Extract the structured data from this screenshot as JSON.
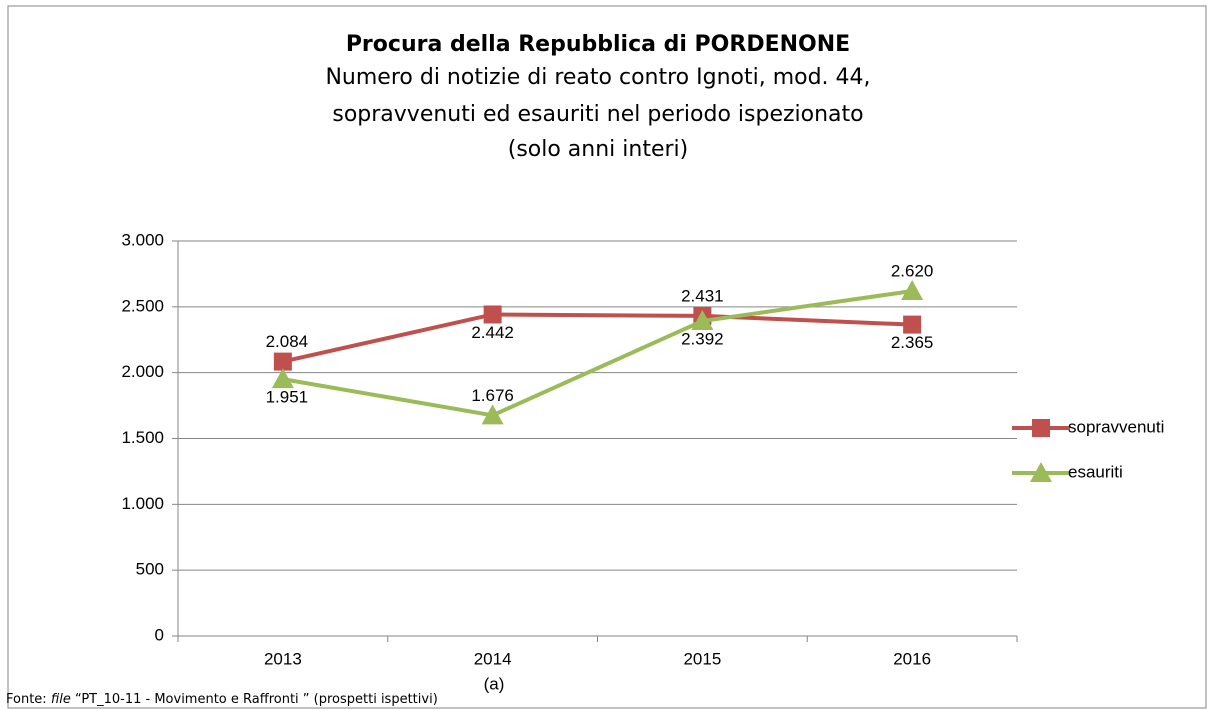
{
  "chart_data": {
    "type": "line",
    "title": "Procura della Repubblica di PORDENONE",
    "subtitle": [
      "Numero di notizie di reato contro Ignoti, mod. 44,",
      "sopravvenuti ed esauriti nel periodo ispezionato",
      "(solo anni interi)"
    ],
    "categories": [
      "2013",
      "2014",
      "2015",
      "2016"
    ],
    "series": [
      {
        "name": "sopravvenuti",
        "color": "#c0504d",
        "values": [
          2084,
          2442,
          2431,
          2365
        ],
        "value_labels": [
          "2.084",
          "2.442",
          "2.431",
          "2.365"
        ]
      },
      {
        "name": "esauriti",
        "color": "#9bbb59",
        "values": [
          1951,
          1676,
          2392,
          2620
        ],
        "value_labels": [
          "1.951",
          "1.676",
          "2.392",
          "2.620"
        ]
      }
    ],
    "ylim": [
      0,
      3000
    ],
    "yticks": [
      {
        "value": 0,
        "label": "0"
      },
      {
        "value": 500,
        "label": "500"
      },
      {
        "value": 1000,
        "label": "1.000"
      },
      {
        "value": 1500,
        "label": "1.500"
      },
      {
        "value": 2000,
        "label": "2.000"
      },
      {
        "value": 2500,
        "label": "2.500"
      },
      {
        "value": 3000,
        "label": "3.000"
      }
    ],
    "grid": true,
    "legend": "right",
    "caption": "(a)",
    "source_prefix": "Fonte:",
    "source_file": "file",
    "source_rest": "“PT_10-11 - Movimento e Raffronti ” (prospetti ispettivi)"
  }
}
